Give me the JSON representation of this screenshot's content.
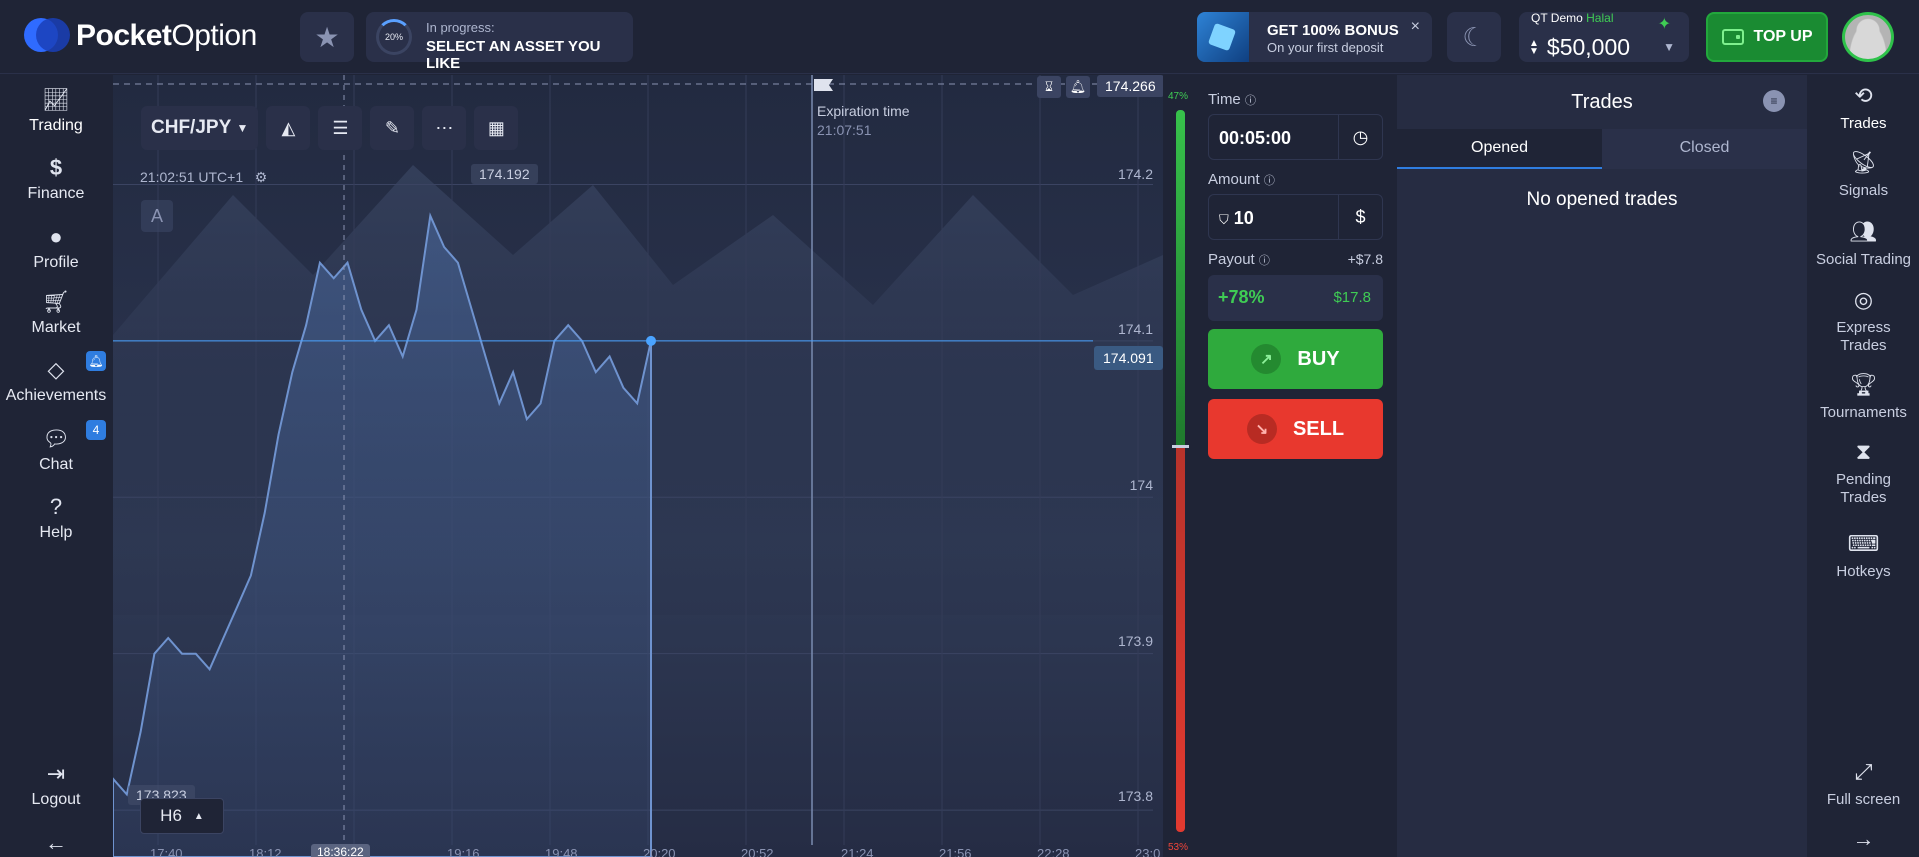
{
  "header": {
    "logo_bold": "Pocket",
    "logo_light": "Option",
    "favorites_icon": "star-icon",
    "progress": {
      "percent_label": "20%",
      "status": "In progress:",
      "task": "SELECT AN ASSET YOU LIKE"
    },
    "bonus": {
      "title": "GET 100% BONUS",
      "subtitle": "On your first deposit",
      "close": "×"
    },
    "theme_icon": "moon-icon",
    "balance": {
      "account": "QT Demo",
      "tag": "Halal",
      "amount": "$50,000"
    },
    "topup_label": "TOP UP"
  },
  "left_nav": [
    {
      "label": "Trading",
      "icon": "chart-line-icon"
    },
    {
      "label": "Finance",
      "icon": "dollar-icon"
    },
    {
      "label": "Profile",
      "icon": "user-icon"
    },
    {
      "label": "Market",
      "icon": "cart-icon"
    },
    {
      "label": "Achievements",
      "icon": "diamond-icon"
    },
    {
      "label": "Chat",
      "icon": "chat-icon",
      "badge": "4"
    },
    {
      "label": "Help",
      "icon": "question-icon"
    },
    {
      "label": "Logout",
      "icon": "logout-icon"
    }
  ],
  "chart": {
    "asset": "CHF/JPY",
    "server_time": "21:02:51 UTC+1",
    "indicator_letter": "A",
    "high_tag": "174.192",
    "low_tag": "173.823",
    "current_price": "174.091",
    "top_price": "174.266",
    "expiration_label": "Expiration time",
    "expiration_time": "21:07:51",
    "timeframe": "H6",
    "y_ticks": [
      "174.2",
      "174.1",
      "174",
      "173.9",
      "173.8"
    ],
    "x_ticks": [
      "17:40",
      "18:12",
      "19:16",
      "19:48",
      "20:20",
      "20:52",
      "21:24",
      "21:56",
      "22:28",
      "23:0"
    ],
    "cursor_time": "18:36:22",
    "sentiment_up": "47%",
    "sentiment_down": "53%"
  },
  "chart_data": {
    "type": "area",
    "series": [
      {
        "values": [
          173.82,
          173.81,
          173.85,
          173.9,
          173.91,
          173.9,
          173.9,
          173.89,
          173.91,
          173.93,
          173.95,
          173.99,
          174.04,
          174.08,
          174.11,
          174.15,
          174.14,
          174.15,
          174.12,
          174.1,
          174.11,
          174.09,
          174.12,
          174.18,
          174.16,
          174.15,
          174.12,
          174.09,
          174.06,
          174.08,
          174.05,
          174.06,
          174.1,
          174.11,
          174.1,
          174.08,
          174.09,
          174.07,
          174.06,
          174.1
        ]
      }
    ],
    "ylim": [
      173.77,
      174.27
    ]
  },
  "trade_panel": {
    "time_label": "Time",
    "time_value": "00:05:00",
    "amount_label": "Amount",
    "amount_value": "10",
    "payout_label": "Payout",
    "payout_extra": "+$7.8",
    "payout_percent": "+78%",
    "payout_amount": "$17.8",
    "buy_label": "BUY",
    "sell_label": "SELL"
  },
  "trades": {
    "title": "Trades",
    "tabs": [
      "Opened",
      "Closed"
    ],
    "empty": "No opened trades"
  },
  "right_nav": [
    {
      "label": "Trades",
      "icon": "trades-icon"
    },
    {
      "label": "Signals",
      "icon": "signals-icon"
    },
    {
      "label": "Social Trading",
      "icon": "social-icon"
    },
    {
      "label": "Express Trades",
      "icon": "target-icon"
    },
    {
      "label": "Tournaments",
      "icon": "trophy-icon"
    },
    {
      "label": "Pending Trades",
      "icon": "hourglass-icon"
    },
    {
      "label": "Hotkeys",
      "icon": "keyboard-icon"
    },
    {
      "label": "Full screen",
      "icon": "fullscreen-icon"
    }
  ]
}
